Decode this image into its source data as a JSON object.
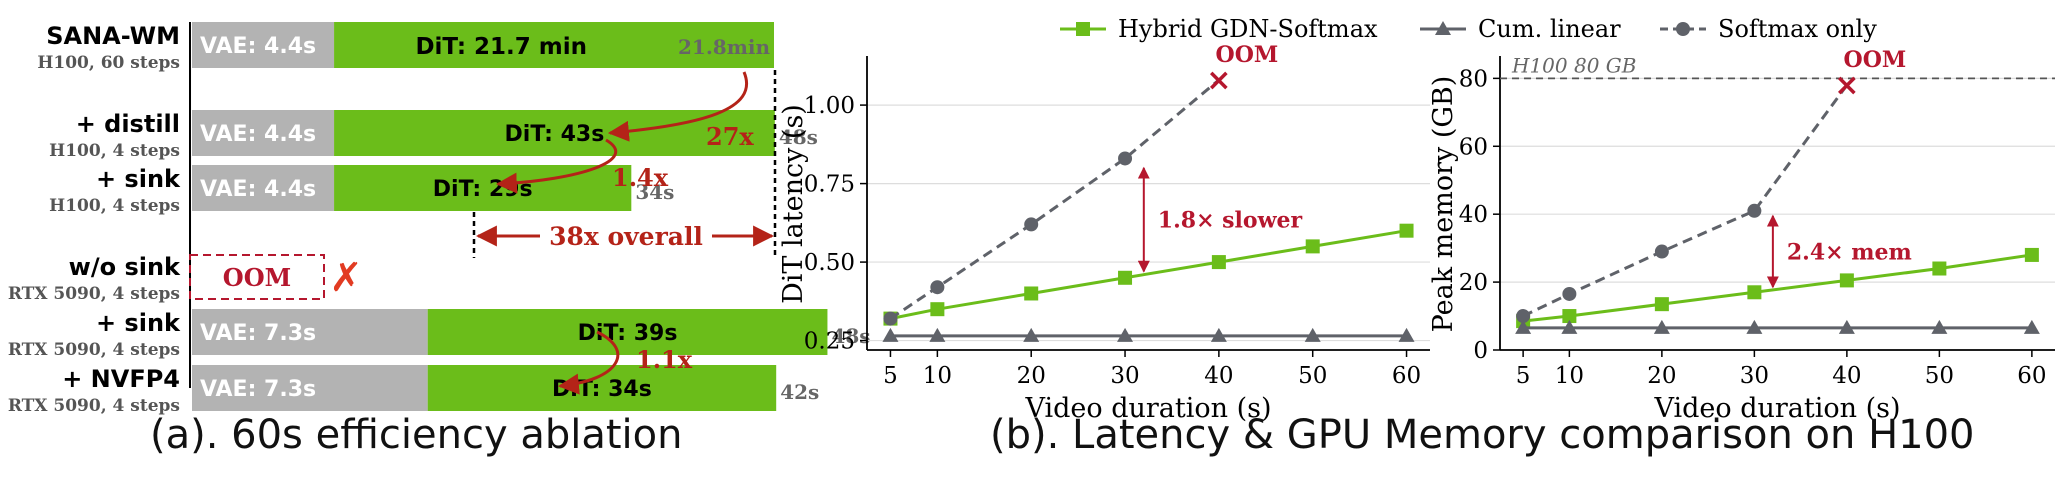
{
  "colors": {
    "green": "#6bbd1a",
    "gray_bar": "#b3b3b3",
    "red": "#b5172e",
    "arrow_red": "#b42318",
    "series_gray": "#5f6269",
    "dashed_gray": "#666666"
  },
  "captions": {
    "a": "(a). 60s efficiency ablation",
    "b": "(b). Latency & GPU Memory comparison on H100"
  },
  "chart_data": [
    {
      "type": "bar",
      "stacked": true,
      "orientation": "horizontal",
      "unit": "s",
      "rows": [
        {
          "name": "SANA-WM",
          "sub": "H100, 60 steps",
          "vae": 4.4,
          "dit": 1302,
          "vae_label": "VAE: 4.4s",
          "dit_label": "DiT: 21.7 min",
          "total_label": "21.8min"
        },
        {
          "name": "+ distill",
          "sub": "H100, 4 steps",
          "vae": 4.4,
          "dit": 43,
          "vae_label": "VAE: 4.4s",
          "dit_label": "DiT: 43s",
          "total_label": "48s"
        },
        {
          "name": "+ sink",
          "sub": "H100, 4 steps",
          "vae": 4.4,
          "dit": 29,
          "vae_label": "VAE: 4.4s",
          "dit_label": "DiT: 29s",
          "total_label": "34s"
        },
        {
          "name": "w/o sink",
          "sub": "RTX 5090, 4 steps",
          "oom": true,
          "oom_label": "OOM",
          "x_mark": "✗"
        },
        {
          "name": "+ sink",
          "sub": "RTX 5090, 4 steps",
          "vae": 7.3,
          "dit": 39,
          "vae_label": "VAE: 7.3s",
          "dit_label": "DiT: 39s",
          "total_label": "48s"
        },
        {
          "name": "+ NVFP4",
          "sub": "RTX 5090, 4 steps",
          "vae": 7.3,
          "dit": 34,
          "vae_label": "VAE: 7.3s",
          "dit_label": "DiT: 34s",
          "total_label": "42s"
        }
      ],
      "annotations": {
        "speedup_1": "27x",
        "speedup_2": "1.4x",
        "overall": "38x overall",
        "speedup_3": "1.1x"
      }
    },
    {
      "type": "line",
      "legend": [
        "Hybrid GDN-Softmax",
        "Cum. linear",
        "Softmax only"
      ],
      "legend_position": "top",
      "xlabel": "Video duration (s)",
      "ylabel": "DiT latency (s)",
      "xticks": [
        5,
        10,
        20,
        30,
        40,
        50,
        60
      ],
      "yticks": [
        "0.25",
        "0.50",
        "0.75",
        "1.00"
      ],
      "ylim": [
        0.22,
        1.15
      ],
      "grid": "horizontal",
      "series": [
        {
          "name": "Hybrid GDN-Softmax",
          "x": [
            5,
            10,
            20,
            30,
            40,
            50,
            60
          ],
          "y": [
            0.32,
            0.35,
            0.4,
            0.45,
            0.5,
            0.55,
            0.6
          ]
        },
        {
          "name": "Cum. linear",
          "x": [
            5,
            10,
            20,
            30,
            40,
            50,
            60
          ],
          "y": [
            0.265,
            0.265,
            0.265,
            0.265,
            0.265,
            0.265,
            0.265
          ]
        },
        {
          "name": "Softmax only",
          "x": [
            5,
            10,
            20,
            30,
            40
          ],
          "y": [
            0.32,
            0.42,
            0.62,
            0.83,
            1.08
          ],
          "oom_at": 40
        }
      ],
      "annotations": {
        "oom": "OOM",
        "slower": "1.8× slower"
      }
    },
    {
      "type": "line",
      "xlabel": "Video duration (s)",
      "ylabel": "Peak memory (GB)",
      "xticks": [
        5,
        10,
        20,
        30,
        40,
        50,
        60
      ],
      "yticks": [
        "0",
        "20",
        "40",
        "60",
        "80"
      ],
      "ylim": [
        0,
        86
      ],
      "grid": "horizontal",
      "hline": {
        "y": 80,
        "label": "H100 80 GB"
      },
      "series": [
        {
          "name": "Hybrid GDN-Softmax",
          "x": [
            5,
            10,
            20,
            30,
            40,
            50,
            60
          ],
          "y": [
            8.5,
            10,
            13.5,
            17,
            20.5,
            24,
            28
          ]
        },
        {
          "name": "Cum. linear",
          "x": [
            5,
            10,
            20,
            30,
            40,
            50,
            60
          ],
          "y": [
            6.5,
            6.5,
            6.5,
            6.5,
            6.5,
            6.5,
            6.5
          ]
        },
        {
          "name": "Softmax only",
          "x": [
            5,
            10,
            20,
            30,
            40
          ],
          "y": [
            10,
            16.5,
            29,
            41,
            78
          ],
          "oom_at": 40
        }
      ],
      "annotations": {
        "oom": "OOM",
        "mem": "2.4× mem"
      }
    }
  ]
}
